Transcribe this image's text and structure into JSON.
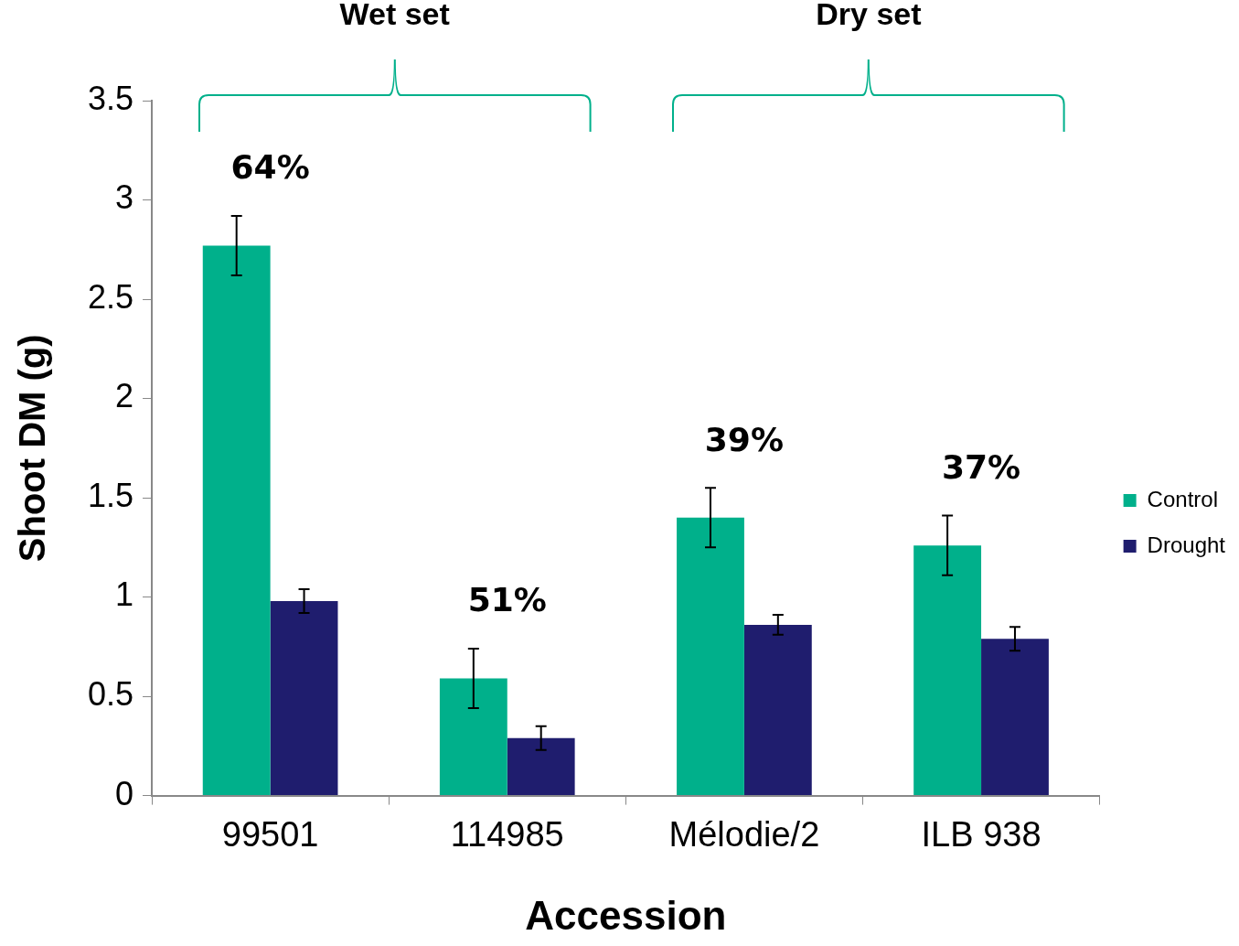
{
  "chart_data": {
    "type": "bar",
    "xlabel": "Accession",
    "ylabel": "Shoot DM (g)",
    "categories": [
      "99501",
      "114985",
      "Mélodie/2",
      "ILB 938"
    ],
    "series": [
      {
        "name": "Control",
        "color": "#00b08b",
        "values": [
          2.77,
          0.59,
          1.4,
          1.26
        ],
        "errors": [
          0.15,
          0.15,
          0.15,
          0.15
        ]
      },
      {
        "name": "Drought",
        "color": "#1f1d6e",
        "values": [
          0.98,
          0.29,
          0.86,
          0.79
        ],
        "errors": [
          0.06,
          0.06,
          0.05,
          0.06
        ]
      }
    ],
    "ylim": [
      0,
      3.5
    ],
    "yticks": [
      0,
      0.5,
      1,
      1.5,
      2,
      2.5,
      3,
      3.5
    ],
    "grid": false,
    "legend": "right",
    "annotations": [
      "Wet set",
      "Dry set",
      "64%",
      "51%",
      "39%",
      "37%"
    ]
  }
}
